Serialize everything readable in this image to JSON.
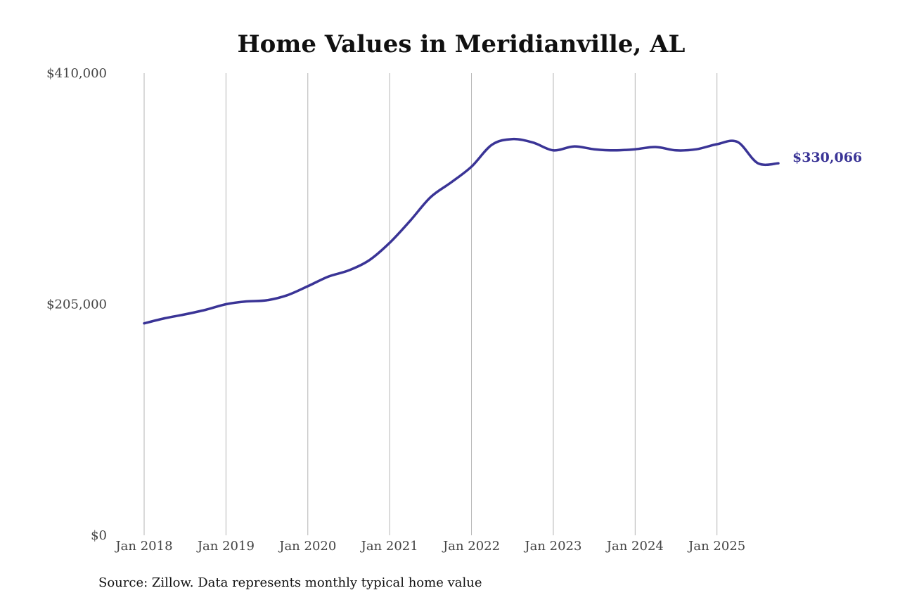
{
  "chart_data": {
    "type": "line",
    "title": "Home Values in Meridianville, AL",
    "xlabel": "",
    "ylabel": "",
    "source": "Source: Zillow. Data represents monthly typical home value",
    "ylim": [
      0,
      410000
    ],
    "y_tick_labels": [
      "$0",
      "$205,000",
      "$410,000"
    ],
    "y_tick_values": [
      0,
      205000,
      410000
    ],
    "x_tick_labels": [
      "Jan 2018",
      "Jan 2019",
      "Jan 2020",
      "Jan 2021",
      "Jan 2022",
      "Jan 2023",
      "Jan 2024",
      "Jan 2025"
    ],
    "x_tick_values": [
      "2018-01",
      "2019-01",
      "2020-01",
      "2021-01",
      "2022-01",
      "2023-01",
      "2024-01",
      "2025-01"
    ],
    "xlim": [
      "2018-01",
      "2025-10"
    ],
    "grid": "vertical",
    "line_color": "#3a3496",
    "end_label": "$330,066",
    "series": [
      {
        "x": [
          "2018-01",
          "2018-04",
          "2018-07",
          "2018-10",
          "2019-01",
          "2019-04",
          "2019-07",
          "2019-10",
          "2020-01",
          "2020-04",
          "2020-07",
          "2020-10",
          "2021-01",
          "2021-04",
          "2021-07",
          "2021-10",
          "2022-01",
          "2022-04",
          "2022-07",
          "2022-10",
          "2023-01",
          "2023-04",
          "2023-07",
          "2023-10",
          "2024-01",
          "2024-04",
          "2024-07",
          "2024-10",
          "2025-01",
          "2025-04",
          "2025-07",
          "2025-10"
        ],
        "values": [
          188000,
          192500,
          196000,
          200000,
          205000,
          207500,
          208500,
          213000,
          221000,
          229500,
          235000,
          244000,
          259500,
          279000,
          300000,
          313000,
          327000,
          346500,
          351500,
          348500,
          341500,
          345000,
          342500,
          341500,
          342500,
          344500,
          341500,
          342500,
          347000,
          349000,
          330066,
          330066
        ]
      }
    ]
  }
}
